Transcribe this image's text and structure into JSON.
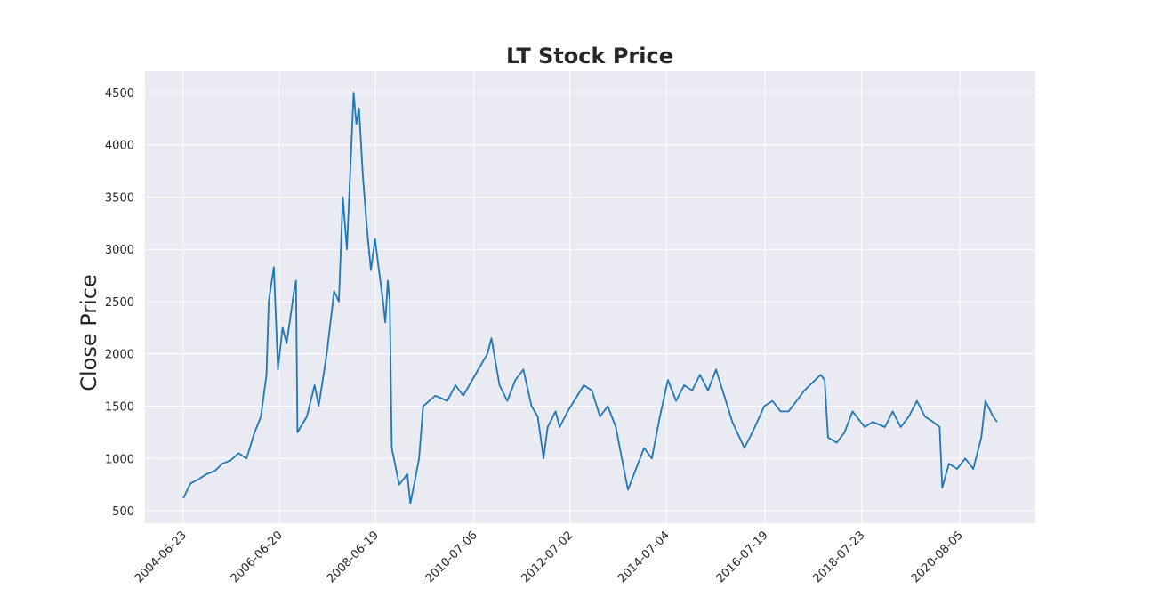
{
  "chart_data": {
    "type": "line",
    "title": "LT Stock Price",
    "y_label": "Close Price",
    "x": [
      "2004-06-23",
      "2004-08-15",
      "2004-10-15",
      "2004-12-15",
      "2005-02-15",
      "2005-04-15",
      "2005-06-15",
      "2005-08-15",
      "2005-10-15",
      "2005-12-15",
      "2006-02-01",
      "2006-03-15",
      "2006-04-01",
      "2006-05-10",
      "2006-06-10",
      "2006-07-15",
      "2006-08-15",
      "2006-10-10",
      "2006-10-25",
      "2006-11-05",
      "2007-01-15",
      "2007-03-15",
      "2007-04-15",
      "2007-06-15",
      "2007-08-10",
      "2007-09-15",
      "2007-10-15",
      "2007-11-15",
      "2008-01-05",
      "2008-01-25",
      "2008-02-15",
      "2008-03-15",
      "2008-04-15",
      "2008-05-15",
      "2008-06-15",
      "2008-07-15",
      "2008-08-15",
      "2008-09-01",
      "2008-09-20",
      "2008-10-05",
      "2008-10-20",
      "2008-12-15",
      "2009-02-15",
      "2009-03-10",
      "2009-04-15",
      "2009-05-15",
      "2009-06-15",
      "2009-09-15",
      "2009-12-15",
      "2010-02-15",
      "2010-04-15",
      "2010-07-15",
      "2010-10-15",
      "2010-11-15",
      "2011-01-15",
      "2011-03-15",
      "2011-05-15",
      "2011-07-15",
      "2011-09-15",
      "2011-11-01",
      "2011-12-15",
      "2012-01-15",
      "2012-03-15",
      "2012-04-15",
      "2012-06-15",
      "2012-10-15",
      "2012-12-15",
      "2013-02-15",
      "2013-04-15",
      "2013-06-15",
      "2013-08-15",
      "2013-09-15",
      "2013-11-15",
      "2014-01-15",
      "2014-03-15",
      "2014-05-15",
      "2014-07-15",
      "2014-09-15",
      "2014-11-15",
      "2015-01-15",
      "2015-03-15",
      "2015-05-15",
      "2015-07-15",
      "2015-09-15",
      "2015-11-15",
      "2016-02-15",
      "2016-04-15",
      "2016-07-15",
      "2016-09-15",
      "2016-11-15",
      "2017-01-15",
      "2017-05-15",
      "2017-09-15",
      "2017-10-15",
      "2017-11-10",
      "2018-01-15",
      "2018-03-15",
      "2018-05-15",
      "2018-08-15",
      "2018-10-15",
      "2019-01-15",
      "2019-03-15",
      "2019-05-15",
      "2019-07-15",
      "2019-09-15",
      "2019-11-15",
      "2020-01-15",
      "2020-03-05",
      "2020-03-25",
      "2020-05-15",
      "2020-07-15",
      "2020-09-15",
      "2020-11-15",
      "2021-01-15",
      "2021-02-15",
      "2021-04-15",
      "2021-05-15"
    ],
    "series": [
      {
        "name": "Close Price",
        "color": "#1f77b4",
        "values": [
          620,
          760,
          800,
          850,
          880,
          950,
          980,
          1050,
          1000,
          1250,
          1400,
          1800,
          2500,
          2830,
          1850,
          2250,
          2100,
          2600,
          2700,
          1250,
          1400,
          1700,
          1500,
          2000,
          2600,
          2500,
          3500,
          3000,
          4500,
          4200,
          4350,
          3700,
          3200,
          2800,
          3100,
          2800,
          2500,
          2300,
          2700,
          2500,
          1100,
          750,
          850,
          570,
          800,
          1000,
          1500,
          1600,
          1550,
          1700,
          1600,
          1800,
          2000,
          2150,
          1700,
          1550,
          1750,
          1850,
          1500,
          1400,
          1000,
          1300,
          1450,
          1300,
          1450,
          1700,
          1650,
          1400,
          1500,
          1300,
          900,
          700,
          900,
          1100,
          1000,
          1400,
          1750,
          1550,
          1700,
          1650,
          1800,
          1650,
          1850,
          1600,
          1350,
          1100,
          1250,
          1500,
          1550,
          1450,
          1450,
          1650,
          1800,
          1750,
          1200,
          1150,
          1250,
          1450,
          1300,
          1350,
          1300,
          1450,
          1300,
          1400,
          1550,
          1400,
          1350,
          1300,
          720,
          950,
          900,
          1000,
          900,
          1200,
          1550,
          1400,
          1350
        ]
      }
    ],
    "xlim": [
      "2003-09-06",
      "2022-03-01"
    ],
    "xticks": [
      "2004-06-23",
      "2006-06-20",
      "2008-06-19",
      "2010-07-06",
      "2012-07-02",
      "2014-07-04",
      "2016-07-19",
      "2018-07-23",
      "2020-08-05"
    ],
    "ylim": [
      381,
      4704
    ],
    "yticks": [
      500,
      1000,
      1500,
      2000,
      2500,
      3000,
      3500,
      4000,
      4500
    ],
    "grid": true
  }
}
